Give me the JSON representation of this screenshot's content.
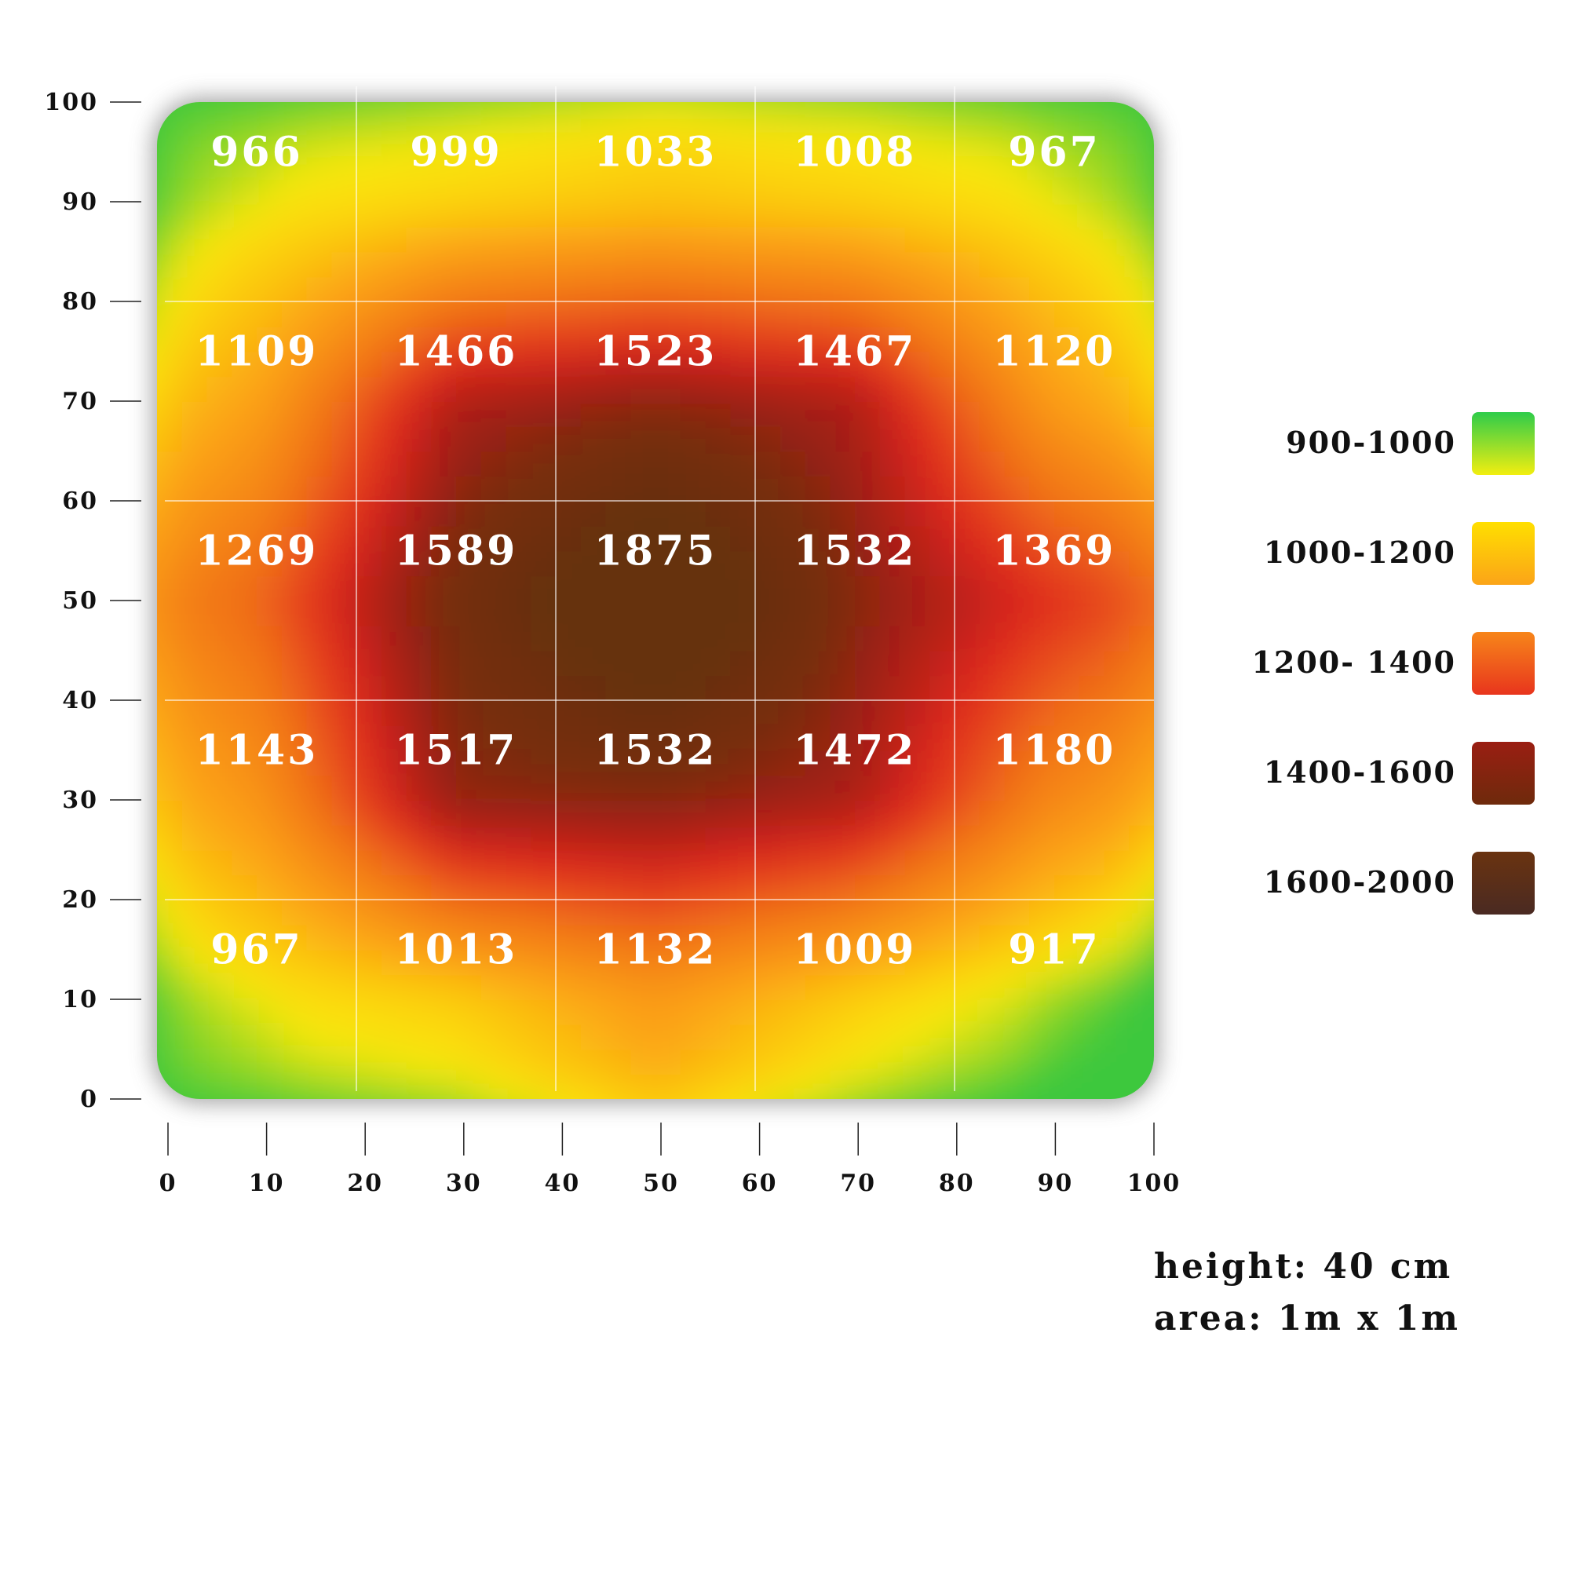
{
  "chart_data": {
    "type": "heatmap",
    "unit": "",
    "x_ticks": [
      "0",
      "10",
      "20",
      "30",
      "40",
      "50",
      "60",
      "70",
      "80",
      "90",
      "100"
    ],
    "y_ticks": [
      "0",
      "10",
      "20",
      "30",
      "40",
      "50",
      "60",
      "70",
      "80",
      "90",
      "100"
    ],
    "xlim": [
      0,
      100
    ],
    "ylim": [
      0,
      100
    ],
    "grid": true,
    "rows": [
      {
        "y_range": [
          80,
          100
        ],
        "values": [
          966,
          999,
          1033,
          1008,
          967
        ]
      },
      {
        "y_range": [
          60,
          80
        ],
        "values": [
          1109,
          1466,
          1523,
          1467,
          1120
        ]
      },
      {
        "y_range": [
          40,
          60
        ],
        "values": [
          1269,
          1589,
          1875,
          1532,
          1369
        ]
      },
      {
        "y_range": [
          20,
          40
        ],
        "values": [
          1143,
          1517,
          1532,
          1472,
          1180
        ]
      },
      {
        "y_range": [
          0,
          20
        ],
        "values": [
          967,
          1013,
          1132,
          1009,
          917
        ]
      }
    ],
    "column_x_ranges": [
      [
        0,
        20
      ],
      [
        20,
        40
      ],
      [
        40,
        60
      ],
      [
        60,
        80
      ],
      [
        80,
        100
      ]
    ],
    "legend": {
      "placement": "right",
      "items": [
        {
          "label": "900-1000",
          "colors": [
            "#2ecc4a",
            "#f2ee10"
          ]
        },
        {
          "label": "1000-1200",
          "colors": [
            "#ffdf00",
            "#fba418"
          ]
        },
        {
          "label": "1200- 1400",
          "colors": [
            "#f7861a",
            "#e8351d"
          ]
        },
        {
          "label": "1400-1600",
          "colors": [
            "#9a1e12",
            "#6e2a0c"
          ]
        },
        {
          "label": "1600-2000",
          "colors": [
            "#6a3310",
            "#4a2a22"
          ]
        }
      ]
    }
  },
  "notes": {
    "height": "height: 40 cm",
    "area": "area: 1m x 1m"
  }
}
